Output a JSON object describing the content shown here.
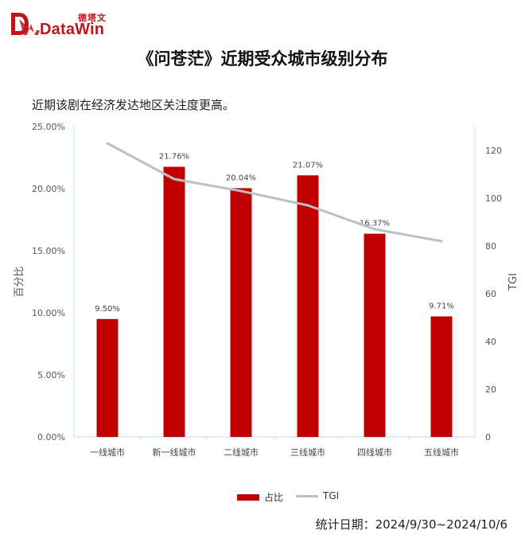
{
  "logo": {
    "cn": "德塔文",
    "en": "DataWin"
  },
  "chart_data": {
    "type": "bar",
    "title": "《问苍茫》近期受众城市级别分布",
    "subtitle": "近期该剧在经济发达地区关注度更高。",
    "categories": [
      "一线城市",
      "新一线城市",
      "二线城市",
      "三线城市",
      "四线城市",
      "五线城市"
    ],
    "series": [
      {
        "name": "占比",
        "type": "bar",
        "axis": "left",
        "values": [
          9.5,
          21.76,
          20.04,
          21.07,
          16.37,
          9.71
        ],
        "labels": [
          "9.50%",
          "21.76%",
          "20.04%",
          "21.07%",
          "16.37%",
          "9.71%"
        ],
        "color": "#c00000"
      },
      {
        "name": "TGI",
        "type": "line",
        "axis": "right",
        "values": [
          123,
          108,
          103,
          97,
          87,
          82
        ],
        "color": "#bfbfbf"
      }
    ],
    "ylabel": "百分比",
    "ylabel_right": "TGI",
    "ylim": [
      0,
      25
    ],
    "yticks": [
      "0.00%",
      "5.00%",
      "10.00%",
      "15.00%",
      "20.00%",
      "25.00%"
    ],
    "ylim_right": [
      0,
      130
    ],
    "yticks_right": [
      "0",
      "20",
      "40",
      "60",
      "80",
      "100",
      "120"
    ],
    "legend_position": "bottom",
    "grid": false
  },
  "footer": {
    "text": "统计日期：2024/9/30~2024/10/6"
  },
  "colors": {
    "brand": "#c0151b",
    "bar": "#c00000",
    "tgi": "#bfbfbf",
    "axis": "#bfe3ea"
  }
}
